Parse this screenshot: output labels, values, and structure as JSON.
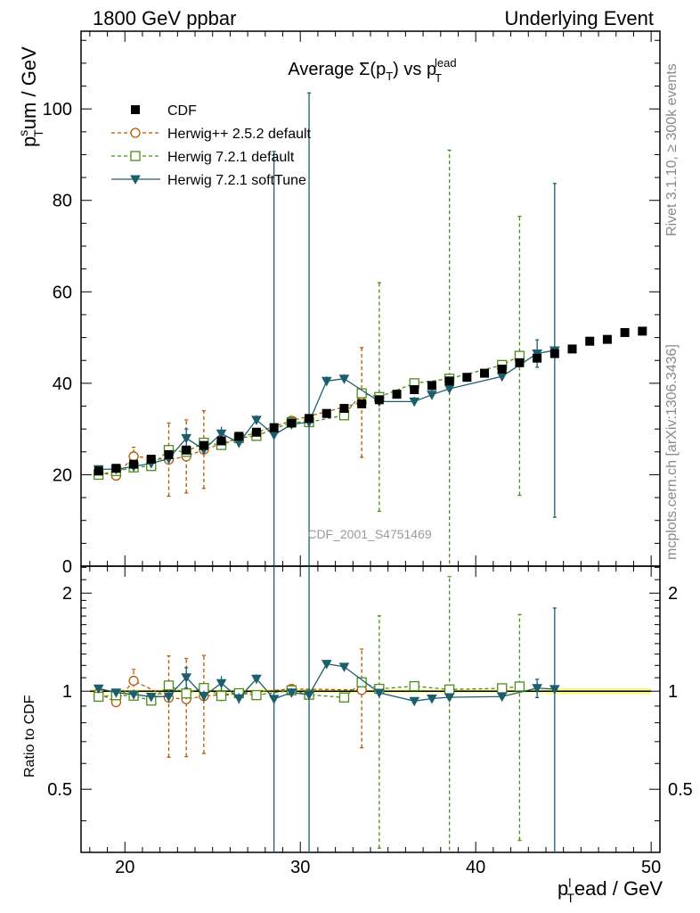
{
  "header": {
    "left": "1800 GeV ppbar",
    "right": "Underlying Event"
  },
  "side_labels": {
    "rivet": "Rivet 3.1.10, ≥ 300k events",
    "mcplots": "mcplots.cern.ch [arXiv:1306.3436]"
  },
  "chart_data": {
    "type": "scatter",
    "title_main": "Average Σ(p",
    "title_sub": "T",
    "title_mid": ") vs p",
    "title_sub2": "T",
    "title_sup2": "lead",
    "watermark": "CDF_2001_S4751469",
    "ylabel_main": {
      "p": "p",
      "sup": "s",
      "sub": "T",
      "rest": "um / GeV"
    },
    "xlabel": {
      "p": "p",
      "sup": "l",
      "sub": "T",
      "rest": "ead / GeV"
    },
    "ylabel_ratio": "Ratio to CDF",
    "xlim": [
      17.5,
      50.5
    ],
    "ylim": [
      0,
      117
    ],
    "ratio_ylim": [
      0.32,
      2.42
    ],
    "x_ticks": [
      "20",
      "30",
      "40",
      "50"
    ],
    "y_ticks": [
      "0",
      "20",
      "40",
      "60",
      "80",
      "100"
    ],
    "ratio_ticks": [
      "0.5",
      "1",
      "2"
    ],
    "ratio_tick_values": [
      0.5,
      1,
      2
    ],
    "legend_position": "top-left",
    "reference": {
      "name": "CDF",
      "color": "#000000",
      "x": [
        18.5,
        19.5,
        20.5,
        21.5,
        22.5,
        23.5,
        24.5,
        25.5,
        26.5,
        27.5,
        28.5,
        29.5,
        30.5,
        31.5,
        32.5,
        33.5,
        34.5,
        35.5,
        36.5,
        37.5,
        38.5,
        39.5,
        40.5,
        41.5,
        42.5,
        43.5,
        44.5,
        45.5,
        46.5,
        47.5,
        48.5,
        49.5
      ],
      "y": [
        20.8,
        21.4,
        22.3,
        23.4,
        24.4,
        25.4,
        26.4,
        27.4,
        28.4,
        29.3,
        30.3,
        31.3,
        32.3,
        33.4,
        34.5,
        35.5,
        36.4,
        37.6,
        38.6,
        39.5,
        40.5,
        41.3,
        42.2,
        43.1,
        44.5,
        45.5,
        46.5,
        47.5,
        49.2,
        49.6,
        51.1,
        51.4
      ]
    },
    "series": [
      {
        "name": "Herwig++ 2.5.2 default",
        "color": "#b35900",
        "marker": "circle",
        "dashed": true,
        "points": [
          {
            "x": 18.5,
            "y": 20.5,
            "err": 0.5
          },
          {
            "x": 19.5,
            "y": 19.8,
            "err": 0.5
          },
          {
            "x": 20.5,
            "y": 24.0,
            "err": 2.0
          },
          {
            "x": 22.5,
            "y": 23.3,
            "err": 8.0
          },
          {
            "x": 23.5,
            "y": 24.0,
            "err": 8.0
          },
          {
            "x": 24.5,
            "y": 25.5,
            "err": 8.5
          },
          {
            "x": 29.5,
            "y": 31.8,
            "err": 1.0
          },
          {
            "x": 33.5,
            "y": 35.8,
            "err": 12.0
          }
        ]
      },
      {
        "name": "Herwig 7.2.1 default",
        "color": "#4d8c1a",
        "marker": "square",
        "dashed": true,
        "points": [
          {
            "x": 18.5,
            "y": 20.0,
            "err": 0.5
          },
          {
            "x": 19.5,
            "y": 20.8,
            "err": 0.5
          },
          {
            "x": 20.5,
            "y": 21.6,
            "err": 0.5
          },
          {
            "x": 21.5,
            "y": 21.9,
            "err": 0.5
          },
          {
            "x": 22.5,
            "y": 25.4,
            "err": 1.0
          },
          {
            "x": 23.5,
            "y": 25.0,
            "err": 1.0
          },
          {
            "x": 24.5,
            "y": 27.0,
            "err": 1.0
          },
          {
            "x": 25.5,
            "y": 26.5,
            "err": 1.0
          },
          {
            "x": 26.5,
            "y": 28.0,
            "err": 1.0
          },
          {
            "x": 27.5,
            "y": 28.5,
            "err": 1.0
          },
          {
            "x": 29.5,
            "y": 31.5,
            "err": 1.0
          },
          {
            "x": 30.5,
            "y": 31.5,
            "err": 1.0
          },
          {
            "x": 32.5,
            "y": 33.0,
            "err": 1.0
          },
          {
            "x": 33.5,
            "y": 37.8,
            "err": 1.0
          },
          {
            "x": 34.5,
            "y": 37.0,
            "err": 25.0
          },
          {
            "x": 36.5,
            "y": 40.0,
            "err": 1.0
          },
          {
            "x": 38.5,
            "y": 41.0,
            "err": 50.0
          },
          {
            "x": 41.5,
            "y": 44.0,
            "err": 1.0
          },
          {
            "x": 42.5,
            "y": 46.0,
            "err": 30.5
          }
        ]
      },
      {
        "name": "Herwig 7.2.1 softTune",
        "color": "#1d5e6e",
        "marker": "triangle",
        "dashed": false,
        "points": [
          {
            "x": 18.5,
            "y": 21.2,
            "err": 0.5
          },
          {
            "x": 19.5,
            "y": 21.2,
            "err": 0.5
          },
          {
            "x": 20.5,
            "y": 21.8,
            "err": 0.5
          },
          {
            "x": 21.5,
            "y": 22.5,
            "err": 0.5
          },
          {
            "x": 22.5,
            "y": 23.5,
            "err": 1.0
          },
          {
            "x": 23.5,
            "y": 28.0,
            "err": 2.0
          },
          {
            "x": 24.5,
            "y": 25.5,
            "err": 1.0
          },
          {
            "x": 25.5,
            "y": 29.0,
            "err": 1.5
          },
          {
            "x": 26.5,
            "y": 27.0,
            "err": 1.0
          },
          {
            "x": 27.5,
            "y": 32.0,
            "err": 1.0
          },
          {
            "x": 28.5,
            "y": 28.7,
            "err": 62.0
          },
          {
            "x": 29.5,
            "y": 31.0,
            "err": 1.0
          },
          {
            "x": 30.5,
            "y": 31.5,
            "err": 72.0
          },
          {
            "x": 31.5,
            "y": 40.5,
            "err": 1.0
          },
          {
            "x": 32.5,
            "y": 41.0,
            "err": 1.0
          },
          {
            "x": 34.5,
            "y": 36.0,
            "err": 1.0
          },
          {
            "x": 36.5,
            "y": 36.0,
            "err": 1.0
          },
          {
            "x": 37.5,
            "y": 37.5,
            "err": 1.0
          },
          {
            "x": 38.5,
            "y": 38.8,
            "err": 1.0
          },
          {
            "x": 41.5,
            "y": 41.5,
            "err": 1.0
          },
          {
            "x": 43.5,
            "y": 46.5,
            "err": 3.0
          },
          {
            "x": 44.5,
            "y": 47.2,
            "err": 36.5
          }
        ]
      }
    ]
  }
}
